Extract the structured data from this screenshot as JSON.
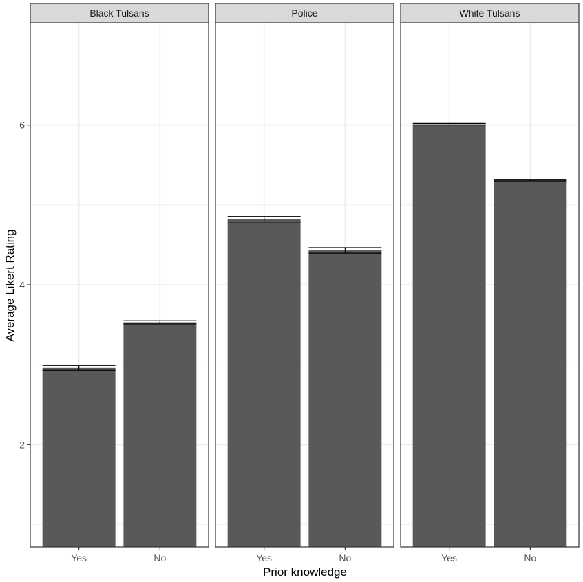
{
  "chart_data": {
    "type": "bar",
    "xlabel": "Prior knowledge",
    "ylabel": "Average Likert Rating",
    "ylim": [
      0.72,
      7.28
    ],
    "yticks": [
      2,
      4,
      6
    ],
    "categories": [
      "Yes",
      "No"
    ],
    "grid": true,
    "bar_color": "#595959",
    "strip_color": "#d9d9d9",
    "grid_color": "#ebebeb",
    "error_bar_style": "horizontal caps at mean ± standard error",
    "panels": [
      {
        "title": "Black Tulsans",
        "bars": [
          {
            "category": "Yes",
            "value": 2.96,
            "error": 0.03
          },
          {
            "category": "No",
            "value": 3.53,
            "error": 0.02
          }
        ]
      },
      {
        "title": "Police",
        "bars": [
          {
            "category": "Yes",
            "value": 4.82,
            "error": 0.035
          },
          {
            "category": "No",
            "value": 4.43,
            "error": 0.035
          }
        ]
      },
      {
        "title": "White Tulsans",
        "bars": [
          {
            "category": "Yes",
            "value": 6.01,
            "error": 0.01
          },
          {
            "category": "No",
            "value": 5.31,
            "error": 0.01
          }
        ]
      }
    ]
  }
}
